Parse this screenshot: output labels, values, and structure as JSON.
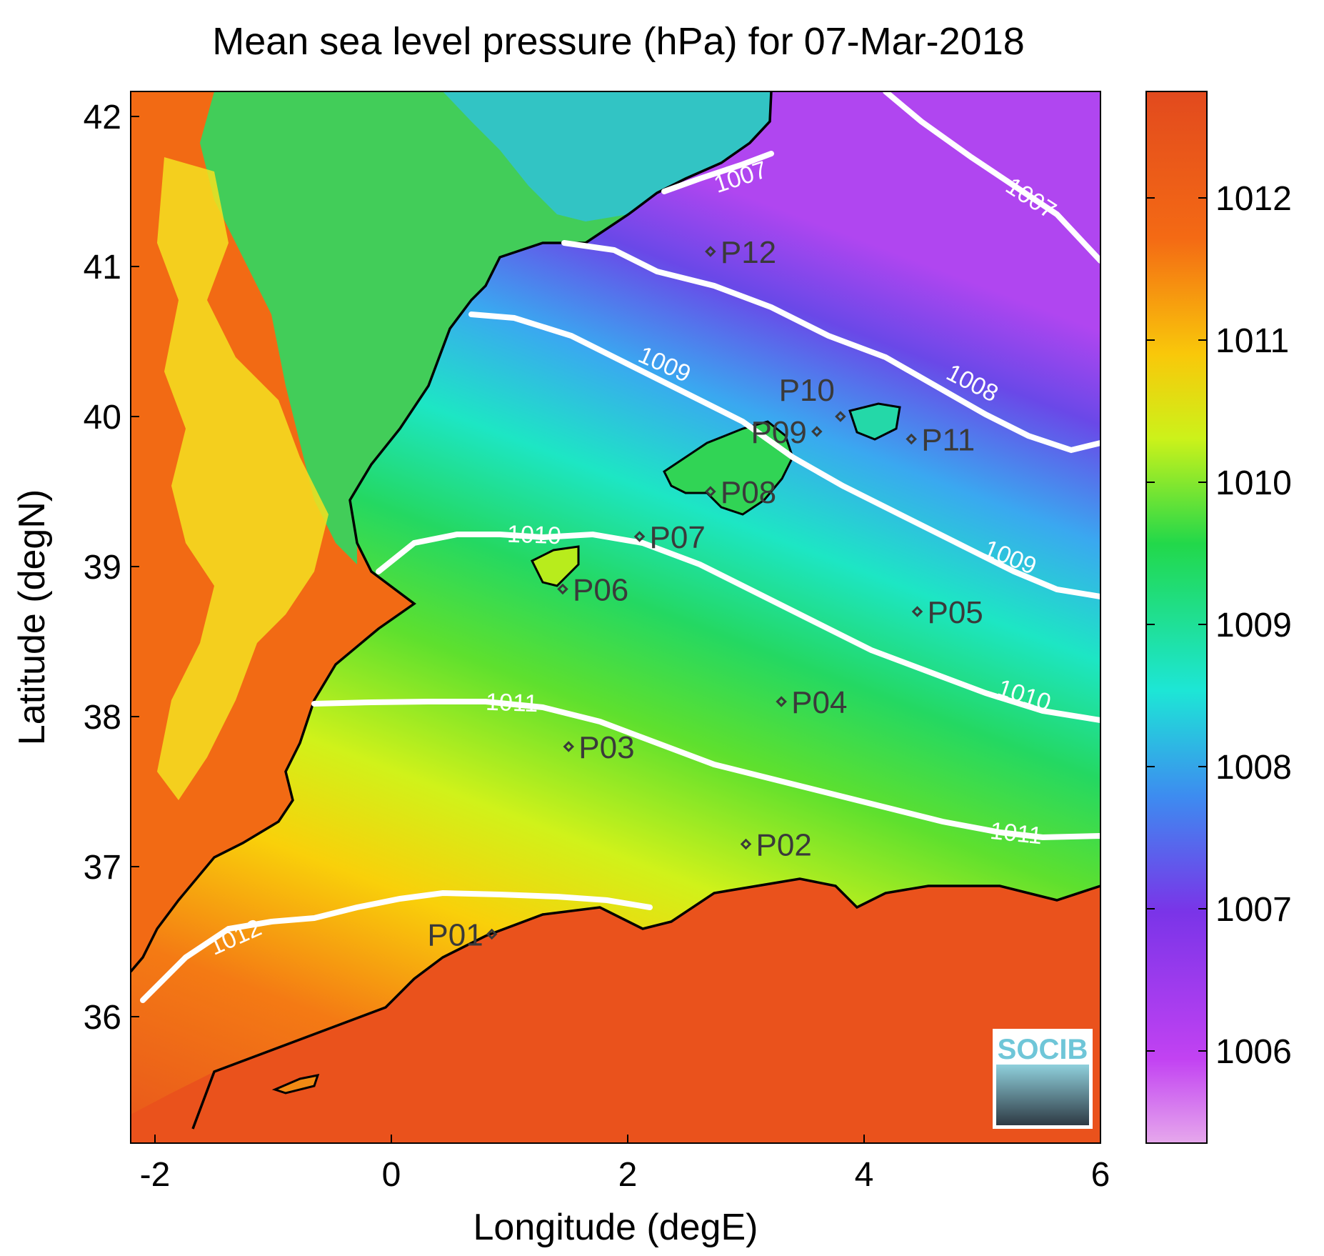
{
  "title": "Mean sea level pressure (hPa) for 07-Mar-2018",
  "x_axis": {
    "label": "Longitude (degE)",
    "ticks": [
      "-2",
      "0",
      "2",
      "4",
      "6"
    ],
    "range": [
      -2.2,
      6.0
    ]
  },
  "y_axis": {
    "label": "Latitude (degN)",
    "ticks": [
      "36",
      "37",
      "38",
      "39",
      "40",
      "41",
      "42"
    ],
    "range": [
      35.2,
      42.2
    ]
  },
  "colorbar": {
    "ticks": [
      "1006",
      "1007",
      "1008",
      "1009",
      "1010",
      "1011",
      "1012"
    ],
    "range": [
      1005.4,
      1012.8
    ],
    "colors": [
      "#e6a8ec",
      "#c242f2",
      "#7a34e8",
      "#3d8cf0",
      "#1de6d6",
      "#22d84a",
      "#ccf21a",
      "#f9c80a",
      "#f46a14",
      "#e24a1e"
    ]
  },
  "contours": [
    {
      "label": "1007"
    },
    {
      "label": "1007"
    },
    {
      "label": "1008"
    },
    {
      "label": "1009"
    },
    {
      "label": "1009"
    },
    {
      "label": "1010"
    },
    {
      "label": "1010"
    },
    {
      "label": "1011"
    },
    {
      "label": "1011"
    },
    {
      "label": "1012"
    }
  ],
  "stations": [
    {
      "label": "P01",
      "lon": 0.85,
      "lat": 36.55
    },
    {
      "label": "P02",
      "lon": 3.0,
      "lat": 37.15
    },
    {
      "label": "P03",
      "lon": 1.5,
      "lat": 37.8
    },
    {
      "label": "P04",
      "lon": 3.3,
      "lat": 38.1
    },
    {
      "label": "P05",
      "lon": 4.45,
      "lat": 38.7
    },
    {
      "label": "P06",
      "lon": 1.45,
      "lat": 38.85
    },
    {
      "label": "P07",
      "lon": 2.1,
      "lat": 39.2
    },
    {
      "label": "P08",
      "lon": 2.7,
      "lat": 39.5
    },
    {
      "label": "P09",
      "lon": 3.6,
      "lat": 39.9
    },
    {
      "label": "P10",
      "lon": 3.8,
      "lat": 40.0
    },
    {
      "label": "P11",
      "lon": 4.4,
      "lat": 39.85
    },
    {
      "label": "P12",
      "lon": 2.7,
      "lat": 41.1
    }
  ],
  "logo": {
    "text": "SOCIB"
  }
}
